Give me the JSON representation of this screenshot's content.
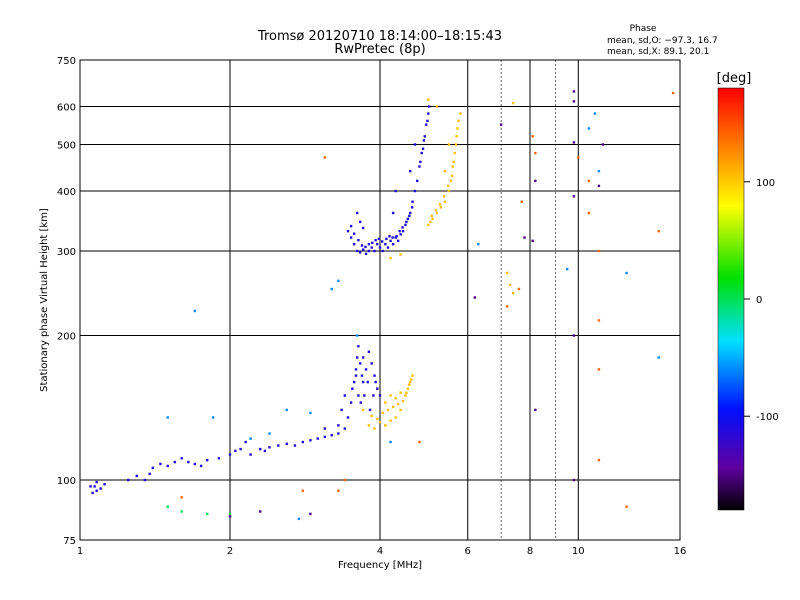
{
  "chart_data": {
    "type": "scatter",
    "title": "Tromsø 20120710 18:14:00–18:15:43",
    "subtitle": "RwPretec (8p)",
    "xlabel": "Frequency [MHz]",
    "ylabel": "Stationary phase Virtual Height [km]",
    "x_scale": "log",
    "y_scale": "log",
    "xlim": [
      1,
      16
    ],
    "ylim": [
      75,
      750
    ],
    "x_ticks": [
      1,
      2,
      4,
      6,
      8,
      10,
      16
    ],
    "y_ticks": [
      75,
      100,
      200,
      300,
      400,
      500,
      600,
      750
    ],
    "x_grid": [
      2,
      4,
      6,
      8,
      10
    ],
    "x_grid_minor": [
      7,
      9
    ],
    "y_grid": [
      100,
      200,
      300,
      400,
      500,
      600
    ],
    "stats": {
      "heading": "Phase",
      "line_o": "mean, sd,O: −97.3, 16.7",
      "line_x": "mean, sd,X:  89.1, 20.1"
    },
    "colorbar": {
      "label": "[deg]",
      "range": [
        -180,
        180
      ],
      "ticks": [
        100,
        0,
        -100
      ]
    },
    "series": [
      {
        "phase": -110,
        "points": [
          [
            1.05,
            97
          ],
          [
            1.06,
            94
          ],
          [
            1.07,
            97
          ],
          [
            1.08,
            99
          ],
          [
            1.1,
            96
          ],
          [
            1.12,
            98
          ],
          [
            1.35,
            100
          ],
          [
            1.38,
            103
          ],
          [
            1.4,
            106
          ],
          [
            1.45,
            108
          ],
          [
            1.5,
            107
          ],
          [
            1.55,
            109
          ],
          [
            1.6,
            111
          ],
          [
            1.65,
            109
          ],
          [
            1.7,
            108
          ],
          [
            1.75,
            107
          ],
          [
            1.8,
            110
          ],
          [
            1.9,
            111
          ],
          [
            2.0,
            113
          ],
          [
            2.05,
            115
          ],
          [
            2.1,
            116
          ],
          [
            2.2,
            113
          ],
          [
            2.3,
            116
          ],
          [
            2.4,
            117
          ],
          [
            2.5,
            118
          ],
          [
            2.6,
            119
          ],
          [
            2.7,
            118
          ],
          [
            2.8,
            120
          ],
          [
            2.9,
            121
          ],
          [
            3.0,
            122
          ],
          [
            3.1,
            123
          ],
          [
            3.2,
            124
          ],
          [
            3.3,
            125
          ],
          [
            3.4,
            128
          ],
          [
            3.45,
            135
          ],
          [
            3.5,
            145
          ],
          [
            3.52,
            155
          ],
          [
            3.55,
            160
          ],
          [
            3.58,
            170
          ],
          [
            3.6,
            180
          ],
          [
            3.62,
            190
          ],
          [
            3.65,
            175
          ],
          [
            3.68,
            165
          ],
          [
            3.7,
            160
          ],
          [
            3.75,
            170
          ],
          [
            3.8,
            185
          ],
          [
            3.85,
            175
          ],
          [
            3.9,
            165
          ],
          [
            3.95,
            155
          ],
          [
            4.0,
            150
          ],
          [
            3.45,
            330
          ],
          [
            3.5,
            320
          ],
          [
            3.55,
            310
          ],
          [
            3.6,
            300
          ],
          [
            3.65,
            298
          ],
          [
            3.7,
            302
          ],
          [
            3.75,
            296
          ],
          [
            3.8,
            300
          ],
          [
            3.85,
            305
          ],
          [
            3.9,
            300
          ],
          [
            3.95,
            310
          ],
          [
            4.0,
            305
          ],
          [
            4.05,
            300
          ],
          [
            4.1,
            310
          ],
          [
            4.15,
            305
          ],
          [
            4.2,
            315
          ],
          [
            4.25,
            310
          ],
          [
            4.3,
            320
          ],
          [
            4.35,
            315
          ],
          [
            4.4,
            325
          ],
          [
            4.45,
            330
          ],
          [
            4.5,
            340
          ],
          [
            4.55,
            350
          ],
          [
            4.6,
            360
          ],
          [
            4.65,
            380
          ],
          [
            4.7,
            400
          ],
          [
            4.75,
            420
          ],
          [
            4.8,
            450
          ],
          [
            4.85,
            480
          ],
          [
            4.9,
            510
          ],
          [
            4.95,
            550
          ],
          [
            5.0,
            580
          ],
          [
            3.6,
            360
          ],
          [
            3.65,
            345
          ],
          [
            3.7,
            335
          ],
          [
            4.25,
            360
          ],
          [
            4.3,
            400
          ],
          [
            4.6,
            440
          ],
          [
            4.7,
            500
          ],
          [
            1.08,
            95
          ],
          [
            1.25,
            100
          ],
          [
            1.3,
            102
          ],
          [
            2.15,
            120
          ],
          [
            2.35,
            115
          ],
          [
            3.1,
            128
          ],
          [
            3.3,
            130
          ],
          [
            3.35,
            140
          ],
          [
            3.4,
            150
          ],
          [
            3.7,
            180
          ],
          [
            3.58,
            165
          ],
          [
            3.62,
            150
          ],
          [
            3.66,
            145
          ],
          [
            3.72,
            150
          ],
          [
            3.78,
            160
          ],
          [
            3.82,
            140
          ],
          [
            3.88,
            150
          ],
          [
            3.92,
            160
          ],
          [
            3.5,
            338
          ],
          [
            3.55,
            326
          ],
          [
            3.62,
            316
          ],
          [
            3.68,
            308
          ],
          [
            3.74,
            306
          ],
          [
            3.8,
            310
          ],
          [
            3.86,
            312
          ],
          [
            3.92,
            316
          ],
          [
            3.98,
            318
          ],
          [
            4.04,
            314
          ],
          [
            4.12,
            318
          ],
          [
            4.18,
            322
          ],
          [
            4.24,
            320
          ],
          [
            4.32,
            322
          ],
          [
            4.38,
            330
          ],
          [
            4.44,
            336
          ],
          [
            4.52,
            345
          ],
          [
            4.58,
            355
          ],
          [
            4.64,
            370
          ],
          [
            4.82,
            460
          ],
          [
            4.88,
            490
          ],
          [
            4.92,
            520
          ],
          [
            4.98,
            560
          ],
          [
            5.02,
            600
          ]
        ]
      },
      {
        "phase": 105,
        "points": [
          [
            3.8,
            130
          ],
          [
            3.9,
            128
          ],
          [
            4.0,
            132
          ],
          [
            4.1,
            130
          ],
          [
            4.2,
            133
          ],
          [
            4.3,
            135
          ],
          [
            4.4,
            140
          ],
          [
            4.5,
            150
          ],
          [
            4.55,
            155
          ],
          [
            4.6,
            160
          ],
          [
            4.65,
            165
          ],
          [
            4.1,
            145
          ],
          [
            4.2,
            150
          ],
          [
            4.3,
            148
          ],
          [
            4.4,
            152
          ],
          [
            4.2,
            290
          ],
          [
            4.4,
            295
          ],
          [
            5.0,
            340
          ],
          [
            5.05,
            345
          ],
          [
            5.1,
            350
          ],
          [
            5.2,
            360
          ],
          [
            5.3,
            370
          ],
          [
            5.4,
            380
          ],
          [
            5.5,
            400
          ],
          [
            5.55,
            420
          ],
          [
            5.6,
            450
          ],
          [
            5.65,
            480
          ],
          [
            5.7,
            520
          ],
          [
            5.75,
            560
          ],
          [
            5.8,
            580
          ],
          [
            5.2,
            600
          ],
          [
            5.0,
            620
          ],
          [
            5.4,
            440
          ],
          [
            5.5,
            500
          ],
          [
            7.4,
            610
          ],
          [
            7.2,
            270
          ],
          [
            7.3,
            255
          ],
          [
            7.4,
            245
          ],
          [
            3.7,
            140
          ],
          [
            3.85,
            136
          ],
          [
            3.95,
            134
          ],
          [
            4.05,
            138
          ],
          [
            4.15,
            140
          ],
          [
            4.25,
            142
          ],
          [
            4.35,
            144
          ],
          [
            4.45,
            146
          ],
          [
            4.52,
            152
          ],
          [
            4.58,
            158
          ],
          [
            4.62,
            162
          ],
          [
            5.08,
            355
          ],
          [
            5.18,
            365
          ],
          [
            5.28,
            375
          ],
          [
            5.38,
            390
          ],
          [
            5.48,
            410
          ],
          [
            5.58,
            430
          ],
          [
            5.62,
            460
          ],
          [
            5.68,
            500
          ],
          [
            5.72,
            540
          ]
        ]
      },
      {
        "phase": 0,
        "points": [
          [
            1.5,
            88
          ],
          [
            1.6,
            86
          ],
          [
            1.8,
            85
          ],
          [
            2.0,
            85
          ]
        ]
      },
      {
        "phase": 140,
        "points": [
          [
            3.1,
            470
          ],
          [
            3.3,
            95
          ],
          [
            7.2,
            230
          ],
          [
            7.6,
            250
          ],
          [
            7.7,
            380
          ],
          [
            8.1,
            520
          ],
          [
            8.2,
            480
          ],
          [
            10.0,
            470
          ],
          [
            10.5,
            420
          ],
          [
            10.5,
            360
          ],
          [
            11.0,
            300
          ],
          [
            11.0,
            215
          ],
          [
            11.0,
            110
          ],
          [
            11.0,
            170
          ],
          [
            12.5,
            88
          ],
          [
            14.5,
            330
          ],
          [
            15.5,
            640
          ],
          [
            3.4,
            100
          ],
          [
            4.8,
            120
          ],
          [
            2.8,
            95
          ],
          [
            1.6,
            92
          ]
        ]
      },
      {
        "phase": -60,
        "points": [
          [
            1.5,
            135
          ],
          [
            1.7,
            225
          ],
          [
            1.85,
            135
          ],
          [
            2.6,
            140
          ],
          [
            2.9,
            138
          ],
          [
            2.75,
            83
          ],
          [
            3.2,
            250
          ],
          [
            6.3,
            310
          ],
          [
            9.5,
            275
          ],
          [
            14.5,
            180
          ],
          [
            10.5,
            540
          ],
          [
            10.8,
            580
          ],
          [
            11.0,
            440
          ],
          [
            12.5,
            270
          ],
          [
            3.3,
            260
          ],
          [
            3.6,
            200
          ],
          [
            4.2,
            120
          ],
          [
            2.4,
            125
          ],
          [
            2.2,
            122
          ]
        ]
      },
      {
        "phase": -150,
        "points": [
          [
            2.0,
            84
          ],
          [
            2.3,
            86
          ],
          [
            2.9,
            85
          ],
          [
            6.2,
            240
          ],
          [
            7.0,
            550
          ],
          [
            8.2,
            420
          ],
          [
            8.2,
            140
          ],
          [
            9.8,
            645
          ],
          [
            9.8,
            615
          ],
          [
            9.8,
            505
          ],
          [
            9.8,
            390
          ],
          [
            9.8,
            200
          ],
          [
            9.8,
            100
          ],
          [
            11.0,
            410
          ],
          [
            11.2,
            500
          ],
          [
            8.1,
            315
          ],
          [
            7.8,
            320
          ]
        ]
      }
    ]
  }
}
